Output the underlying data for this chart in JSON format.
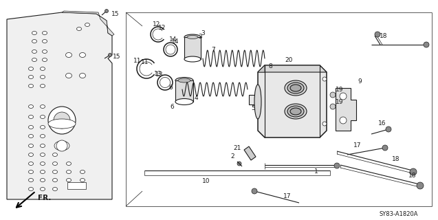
{
  "bg_color": "#ffffff",
  "line_color": "#1a1a1a",
  "diagram_code": "SY83-A1820A",
  "fr_label": "FR.",
  "lw_thin": 0.5,
  "lw_med": 0.8,
  "lw_thick": 1.1
}
